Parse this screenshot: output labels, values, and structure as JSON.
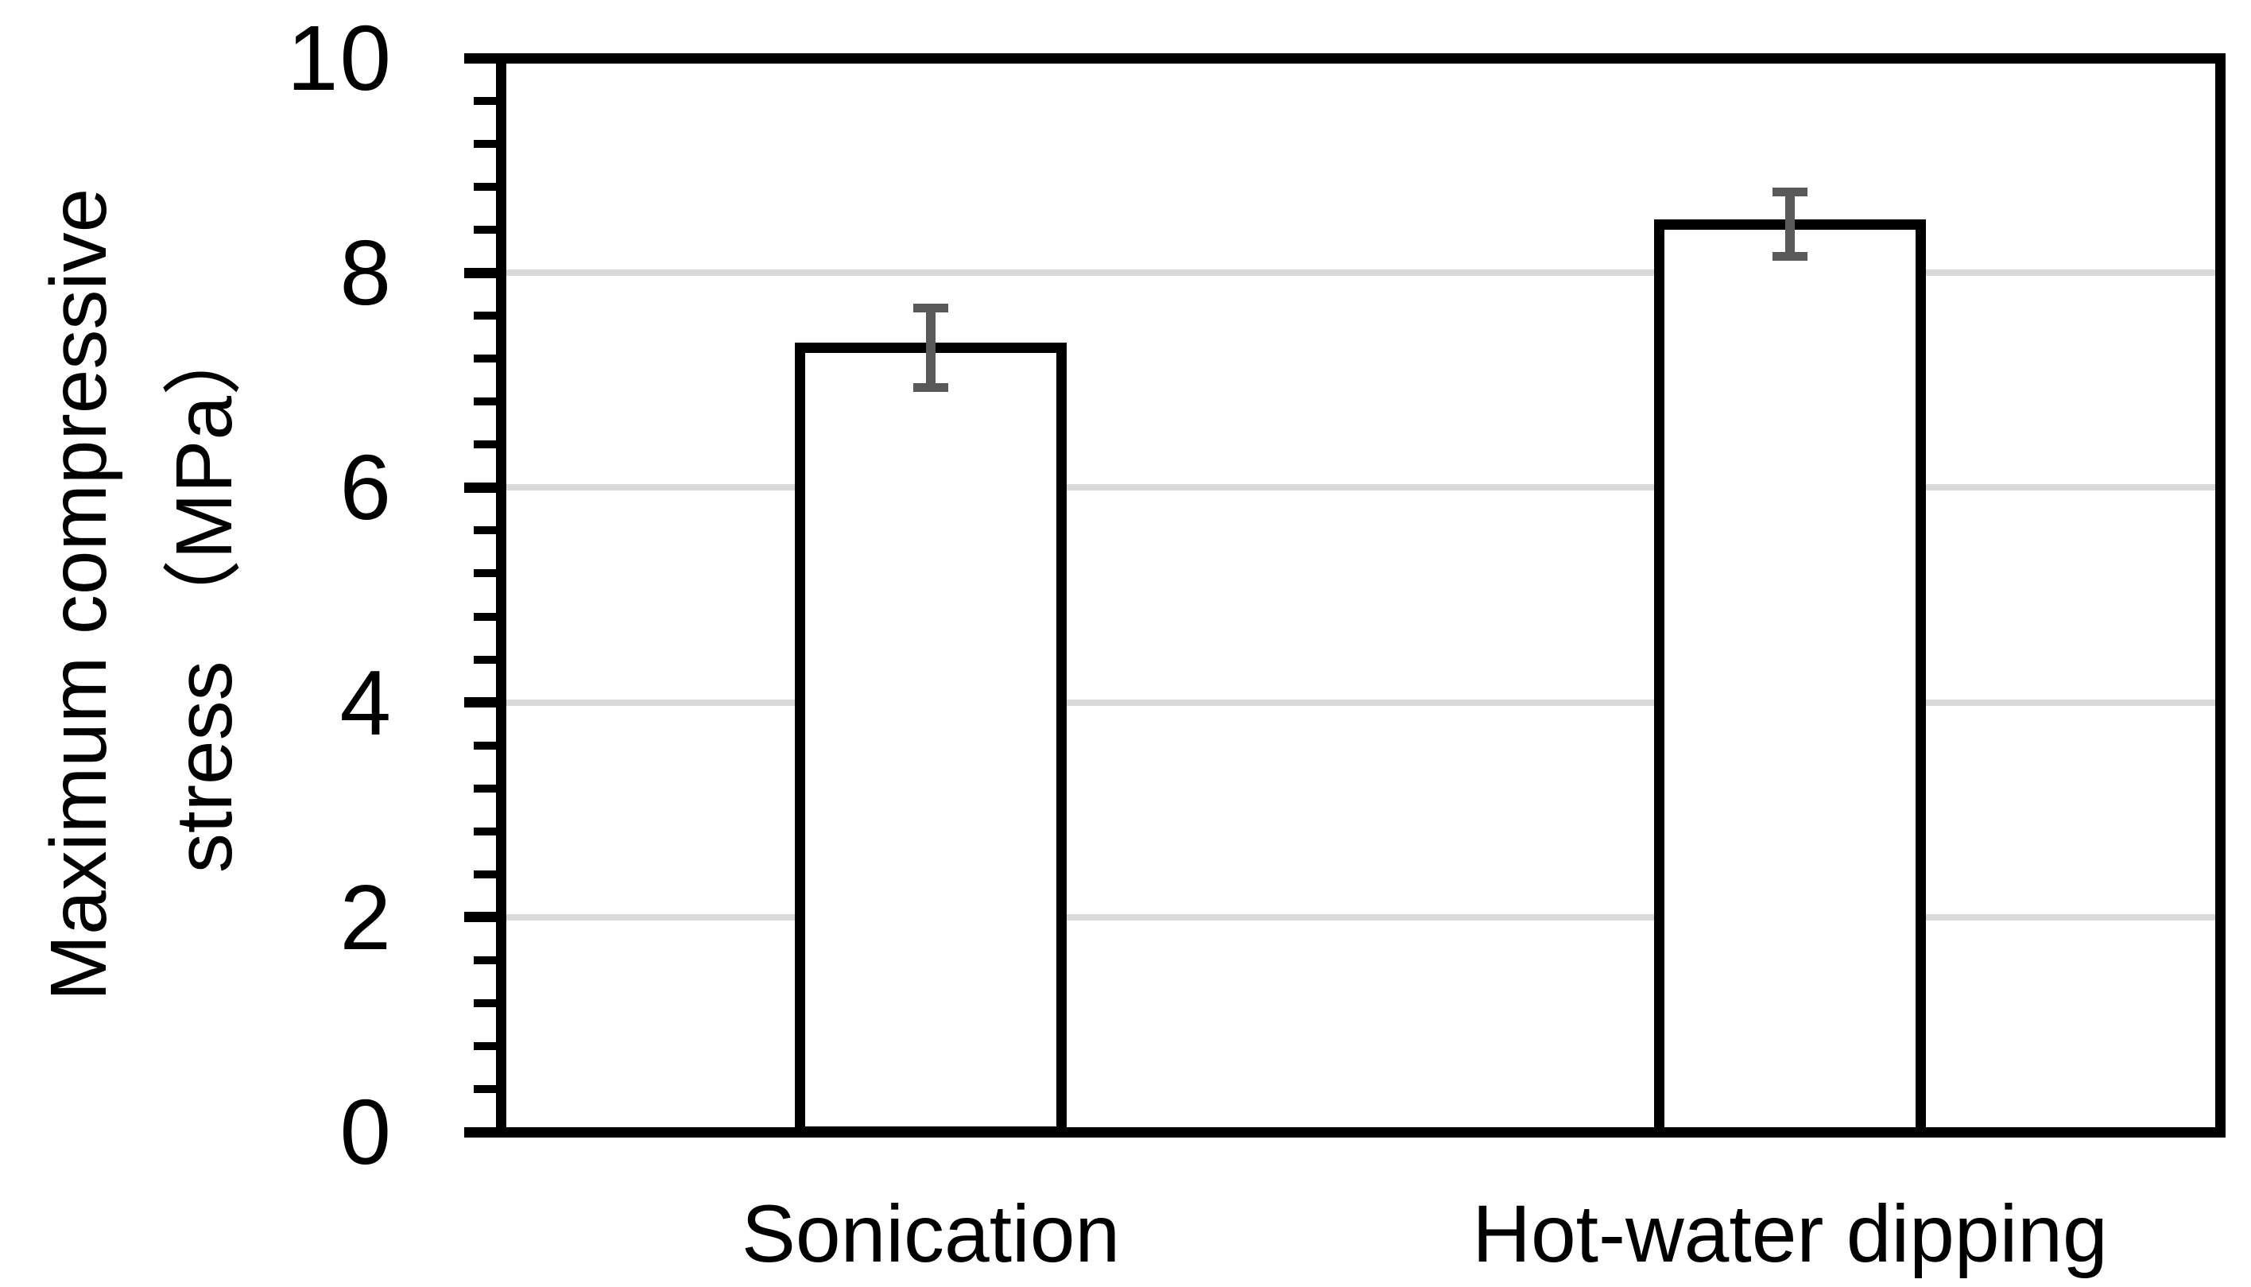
{
  "chart_data": {
    "type": "bar",
    "title": "",
    "xlabel": "",
    "ylabel": "Maximum compressive stress （MPa）",
    "ylabel_lines": [
      "Maximum compressive",
      "stress （MPa）"
    ],
    "categories": [
      "Sonication",
      "Hot-water dipping"
    ],
    "values": [
      7.3,
      8.45
    ],
    "errors": [
      0.37,
      0.3
    ],
    "ylim": [
      0,
      10
    ],
    "ytick_major_interval": 2,
    "ytick_minor_interval": 0.4,
    "ytick_labels": [
      "0",
      "2",
      "4",
      "6",
      "8",
      "10"
    ],
    "grid": "horizontal major gridlines on",
    "legend_position": "none",
    "plot_border": "full black box",
    "colors": {
      "background": "#ffffff",
      "bar_fill": "#ffffff",
      "bar_border": "#000000",
      "axis": "#000000",
      "gridline": "#d9d9d9",
      "error_bar": "#595959",
      "text": "#000000"
    }
  }
}
